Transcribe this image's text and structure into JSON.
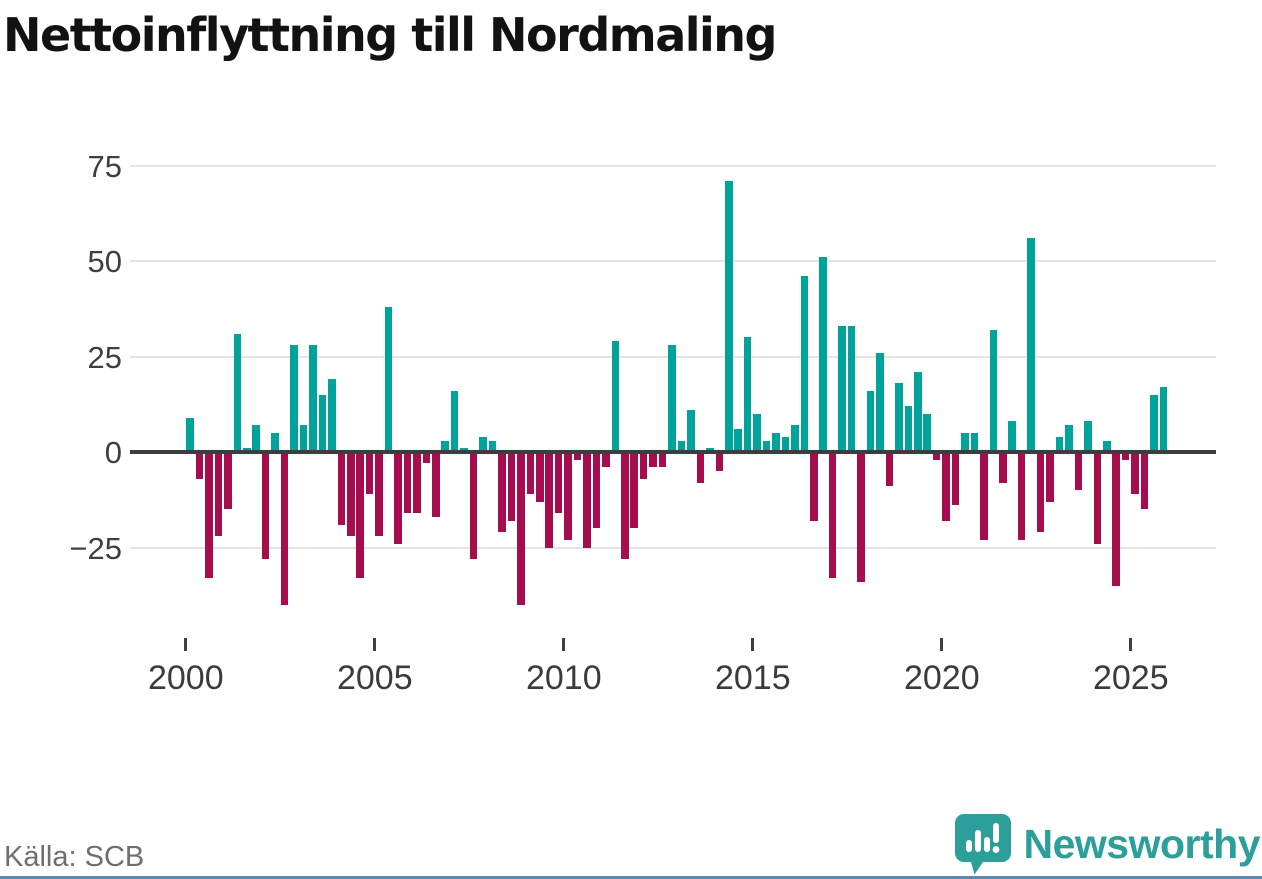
{
  "header": {
    "title": "Nettoinflyttning till Nordmaling"
  },
  "footer": {
    "source": "Källa: SCB",
    "brand": "Newsworthy"
  },
  "chart_data": {
    "type": "bar",
    "title": "Nettoinflyttning till Nordmaling",
    "frequency": "quarterly",
    "start_period": "2000 Q1",
    "end_period": "2025 Q4",
    "values": [
      9,
      -7,
      -33,
      -22,
      -15,
      31,
      1,
      7,
      -28,
      5,
      -40,
      28,
      7,
      28,
      15,
      19,
      -19,
      -22,
      -33,
      -11,
      -22,
      38,
      -24,
      -16,
      -16,
      -3,
      -17,
      3,
      16,
      1,
      -28,
      4,
      3,
      -21,
      -18,
      -40,
      -11,
      -13,
      -25,
      -16,
      -23,
      -2,
      -25,
      -20,
      -4,
      29,
      -28,
      -20,
      -7,
      -4,
      -4,
      28,
      3,
      11,
      -8,
      1,
      -5,
      71,
      6,
      30,
      10,
      3,
      5,
      4,
      7,
      46,
      -18,
      51,
      -33,
      33,
      33,
      -34,
      16,
      26,
      -9,
      18,
      12,
      21,
      10,
      -2,
      -18,
      -14,
      5,
      5,
      -23,
      32,
      -8,
      8,
      -23,
      56,
      -21,
      -13,
      4,
      7,
      -10,
      8,
      -24,
      3,
      -35,
      -2,
      -11,
      -15,
      15,
      17
    ],
    "y_ticks": [
      {
        "v": 75,
        "label": "75"
      },
      {
        "v": 50,
        "label": "50"
      },
      {
        "v": 25,
        "label": "25"
      },
      {
        "v": 0,
        "label": "0"
      },
      {
        "v": -25,
        "label": "−25"
      }
    ],
    "x_ticks": [
      {
        "year": 2000,
        "label": "2000"
      },
      {
        "year": 2005,
        "label": "2005"
      },
      {
        "year": 2010,
        "label": "2010"
      },
      {
        "year": 2015,
        "label": "2015"
      },
      {
        "year": 2020,
        "label": "2020"
      },
      {
        "year": 2025,
        "label": "2025"
      }
    ],
    "ylim": [
      -45,
      80
    ],
    "grid": true,
    "legend": "none",
    "colors": {
      "positive": "#00a39a",
      "negative": "#a50d4f"
    }
  },
  "brand_colors": {
    "logo_teal": "#2d9f9b",
    "accent_line": "#5d87ad"
  }
}
